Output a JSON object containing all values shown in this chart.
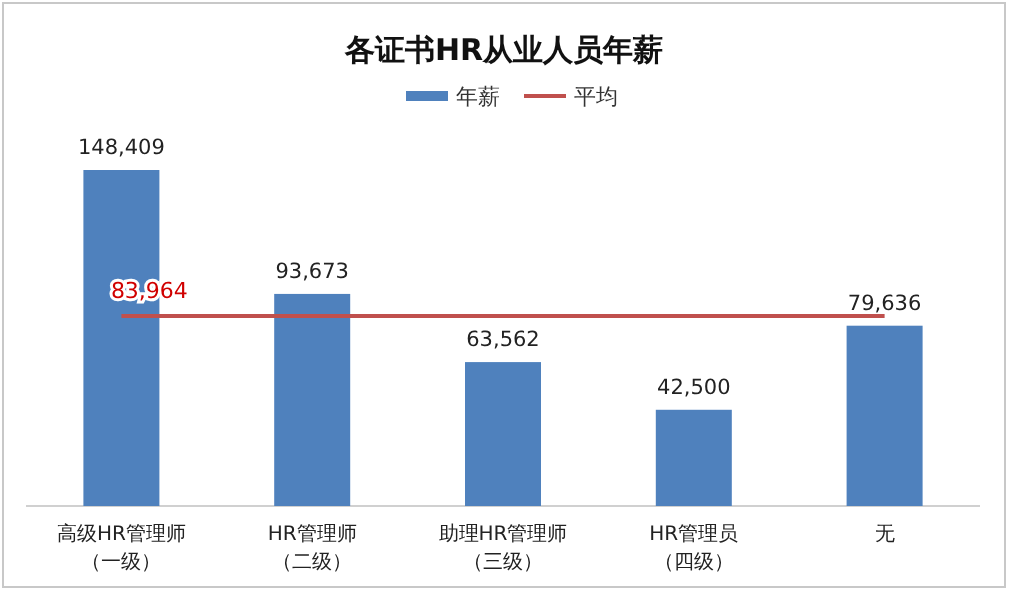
{
  "chart_data": {
    "type": "bar",
    "title": "各证书HR从业人员年薪",
    "categories": [
      "高级HR管理师（一级）",
      "HR管理师（二级）",
      "助理HR管理师（三级）",
      "HR管理员（四级）",
      "无"
    ],
    "series": [
      {
        "name": "年薪",
        "color": "#4f81bd",
        "values": [
          148409,
          93673,
          63562,
          42500,
          79636
        ],
        "value_labels": [
          "148,409",
          "93,673",
          "63,562",
          "42,500",
          "79,636"
        ]
      },
      {
        "name": "平均",
        "type": "line",
        "color": "#c0504d",
        "values": [
          83964,
          83964,
          83964,
          83964,
          83964
        ],
        "value_labels": [
          "83,964",
          null,
          null,
          null,
          null
        ]
      }
    ],
    "legend": "top"
  }
}
